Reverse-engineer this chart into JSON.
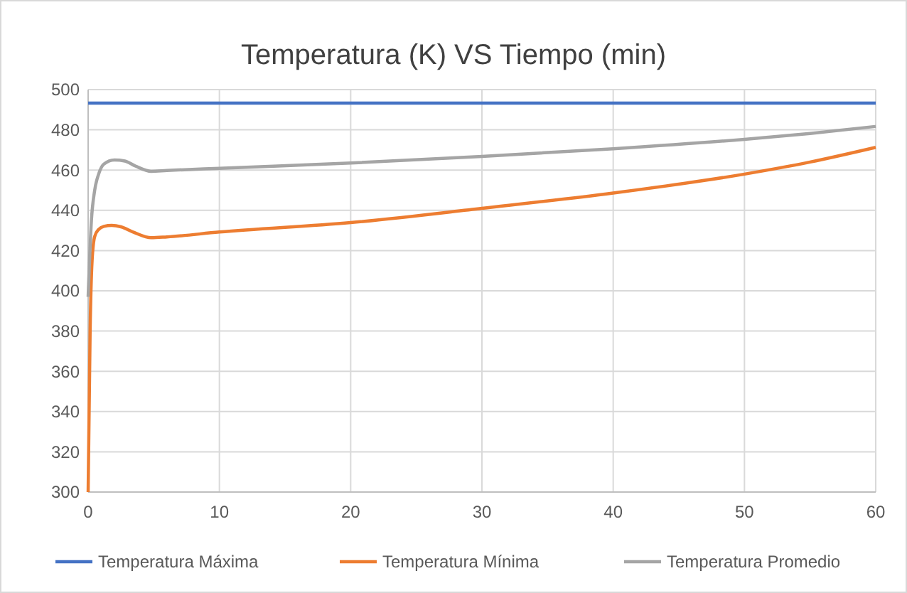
{
  "chart_data": {
    "type": "line",
    "title": "Temperatura (K) VS Tiempo (min)",
    "xlim": [
      0,
      60
    ],
    "xticks": [
      0,
      10,
      20,
      30,
      40,
      50,
      60
    ],
    "ylim": [
      300,
      500
    ],
    "yticks": [
      300,
      320,
      340,
      360,
      380,
      400,
      420,
      440,
      460,
      480,
      500
    ],
    "grid": true,
    "legend": "bottom",
    "marker": "none",
    "series": [
      {
        "name": "Temperatura Máxima",
        "color": "#4472c4",
        "x": [
          0,
          60
        ],
        "values": [
          493.3,
          493.3
        ]
      },
      {
        "name": "Temperatura Mínima",
        "color": "#ed7d31",
        "x": [
          0,
          0.15,
          0.3,
          0.5,
          0.8,
          1.2,
          1.8,
          2.5,
          3.5,
          4.8,
          6,
          10,
          20,
          30,
          40,
          50,
          55,
          60
        ],
        "values": [
          300,
          380,
          415,
          427,
          430.5,
          432,
          432.5,
          431.8,
          429,
          426.4,
          426.8,
          429.2,
          433.9,
          441,
          448.6,
          458,
          464,
          471.3
        ]
      },
      {
        "name": "Temperatura Promedio",
        "color": "#a5a5a5",
        "x": [
          0,
          0.25,
          0.5,
          0.8,
          1.2,
          2,
          2.8,
          3.6,
          4.8,
          6,
          10,
          20,
          30,
          40,
          50,
          55,
          60
        ],
        "values": [
          397,
          435,
          450,
          458,
          463,
          465,
          464.5,
          462,
          459.4,
          459.8,
          460.9,
          463.5,
          466.8,
          470.6,
          475.3,
          478.2,
          481.7
        ]
      }
    ]
  }
}
